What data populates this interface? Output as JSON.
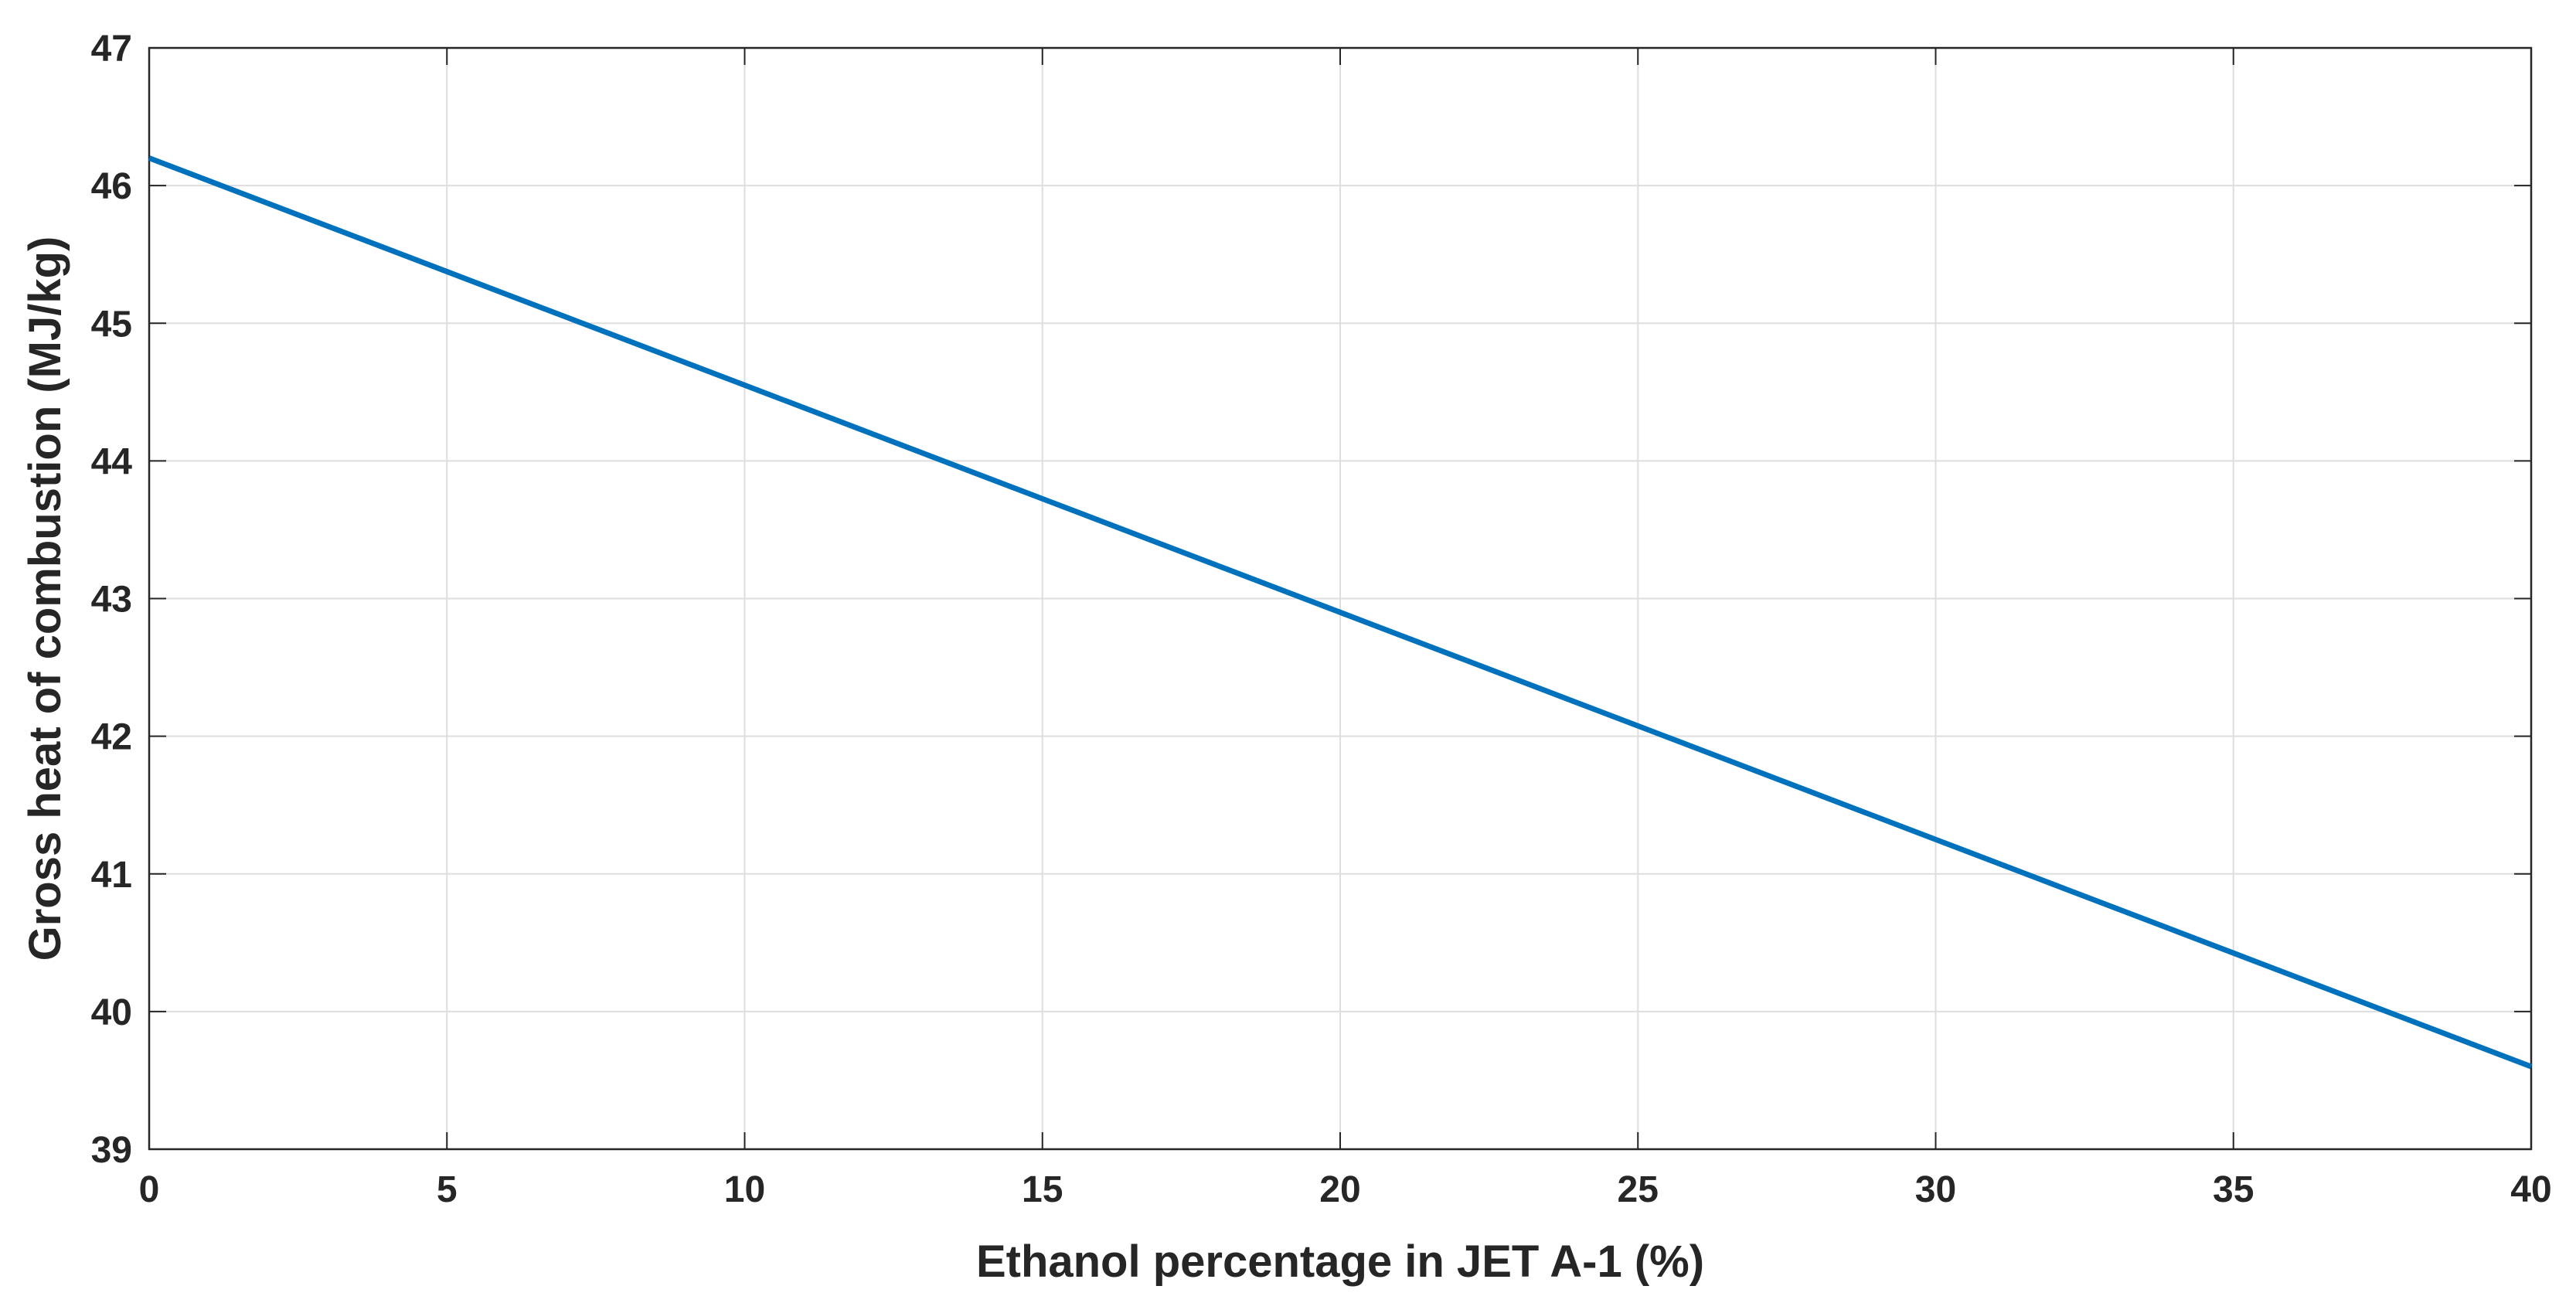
{
  "chart_data": {
    "type": "line",
    "title": "",
    "xlabel": "Ethanol percentage in JET A-1 (%)",
    "ylabel": "Gross heat of combustion (MJ/kg)",
    "xlim": [
      0,
      40
    ],
    "ylim": [
      39,
      47
    ],
    "x_ticks": [
      0,
      5,
      10,
      15,
      20,
      25,
      30,
      35,
      40
    ],
    "y_ticks": [
      39,
      40,
      41,
      42,
      43,
      44,
      45,
      46,
      47
    ],
    "grid": true,
    "legend": null,
    "series": [
      {
        "name": "Gross heat of combustion",
        "color": "#0072bd",
        "x": [
          0,
          5,
          10,
          15,
          20,
          25,
          30,
          35,
          40
        ],
        "y": [
          46.2,
          45.375,
          44.55,
          43.725,
          42.9,
          42.075,
          41.25,
          40.425,
          39.6
        ]
      }
    ]
  }
}
